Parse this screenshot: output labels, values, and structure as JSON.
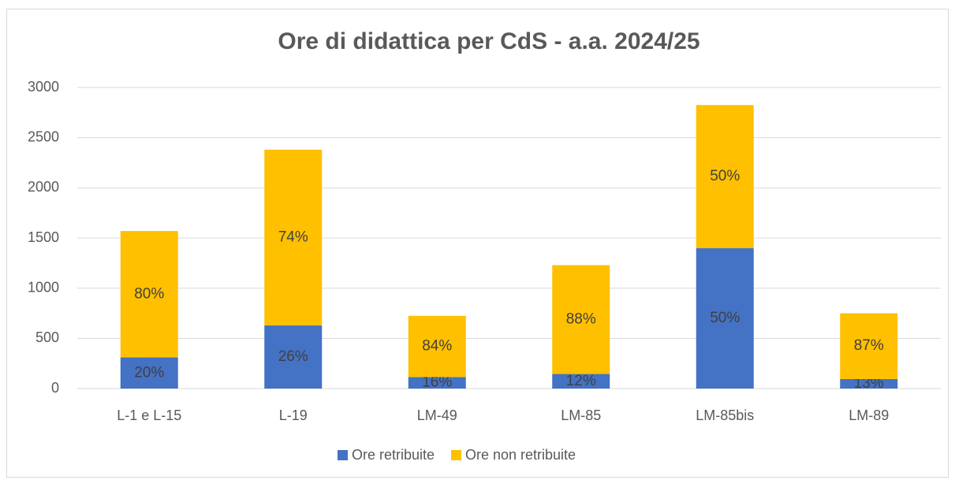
{
  "chart_data": {
    "type": "stacked_bar",
    "title": "Ore di didattica per CdS - a.a. 2024/25",
    "categories": [
      "L-1 e L-15",
      "L-19",
      "LM-49",
      "LM-85",
      "LM-85bis",
      "LM-89"
    ],
    "series": [
      {
        "name": "Ore retribuite",
        "color": "#4472c4",
        "values": [
          310,
          630,
          115,
          145,
          1400,
          95
        ],
        "value_labels": [
          "20%",
          "26%",
          "16%",
          "12%",
          "50%",
          "13%"
        ]
      },
      {
        "name": "Ore non retribuite",
        "color": "#ffc000",
        "values": [
          1260,
          1750,
          610,
          1085,
          1425,
          655
        ],
        "value_labels": [
          "80%",
          "74%",
          "84%",
          "88%",
          "50%",
          "87%"
        ]
      }
    ],
    "ylim": [
      0,
      3000
    ],
    "yticks": [
      0,
      500,
      1000,
      1500,
      2000,
      2500,
      3000
    ],
    "grid": true,
    "legend": "bottom"
  }
}
